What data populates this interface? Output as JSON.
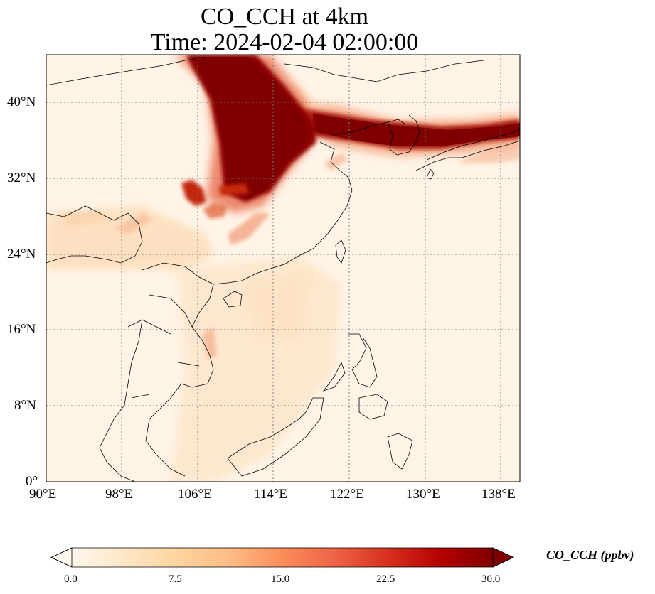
{
  "title": {
    "line1": "CO_CCH at 4km",
    "line2": "Time: 2024-02-04 02:00:00"
  },
  "map": {
    "projection": "PlateCarree",
    "lon_range": [
      90,
      140
    ],
    "lat_range": [
      0,
      45
    ],
    "gridlines": "dotted",
    "lon_ticks": [
      "90°E",
      "98°E",
      "106°E",
      "114°E",
      "122°E",
      "130°E",
      "138°E"
    ],
    "lat_ticks": [
      "0°",
      "8°N",
      "16°N",
      "24°N",
      "32°N",
      "40°N"
    ],
    "background_color": "#fff4e6",
    "coastline_color": "#000000"
  },
  "colorbar": {
    "label": "CO_CCH (ppbv)",
    "ticks": [
      "0.0",
      "7.5",
      "15.0",
      "22.5",
      "30.0"
    ],
    "range": [
      0,
      30
    ],
    "extend": "both",
    "colormap": "OrRd",
    "colors": [
      "#fff7ec",
      "#fee8c8",
      "#fdd49e",
      "#fdbb84",
      "#fc8d59",
      "#ef6548",
      "#d7301f",
      "#b30000",
      "#7f0000"
    ]
  }
}
